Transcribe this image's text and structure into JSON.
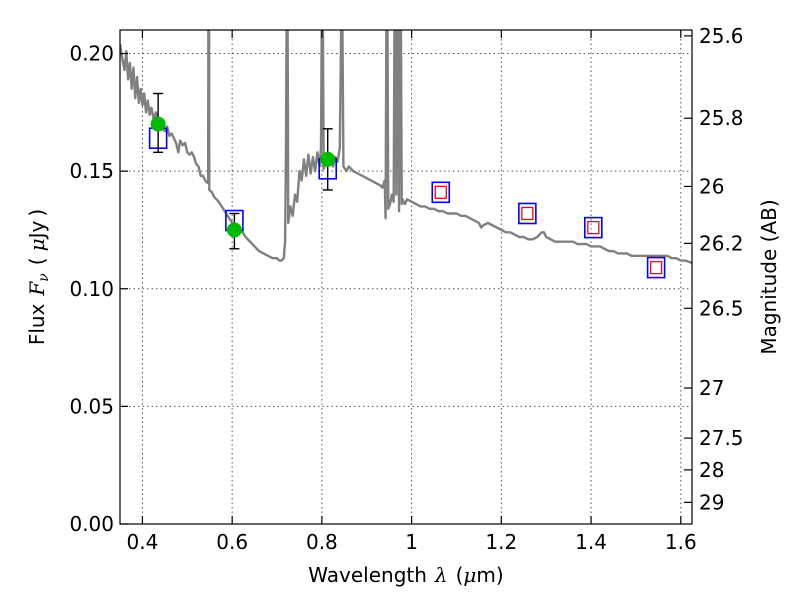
{
  "chart_data": {
    "type": "scatter",
    "title": "",
    "xlabel_parts": [
      "Wavelength",
      "λ",
      "(",
      "μ",
      "m)"
    ],
    "ylabel_parts": [
      "Flux",
      "F",
      "ν",
      "(",
      "μ",
      "Jy",
      ")"
    ],
    "y2label": "Magnitude (AB)",
    "xlim": [
      0.35,
      1.625
    ],
    "ylim": [
      0.0,
      0.21
    ],
    "grid": true,
    "x_ticks": [
      {
        "value": 0.4,
        "label": "0.4"
      },
      {
        "value": 0.6,
        "label": "0.6"
      },
      {
        "value": 0.8,
        "label": "0.8"
      },
      {
        "value": 1.0,
        "label": "1"
      },
      {
        "value": 1.2,
        "label": "1.2"
      },
      {
        "value": 1.4,
        "label": "1.4"
      },
      {
        "value": 1.6,
        "label": "1.6"
      }
    ],
    "y_ticks": [
      {
        "value": 0.0,
        "label": "0.00"
      },
      {
        "value": 0.05,
        "label": "0.05"
      },
      {
        "value": 0.1,
        "label": "0.10"
      },
      {
        "value": 0.15,
        "label": "0.15"
      },
      {
        "value": 0.2,
        "label": "0.20"
      }
    ],
    "y2_ticks": [
      {
        "flux": 0.2075,
        "label": "25.6"
      },
      {
        "flux": 0.1725,
        "label": "25.8"
      },
      {
        "flux": 0.1435,
        "label": "26"
      },
      {
        "flux": 0.1193,
        "label": "26.2"
      },
      {
        "flux": 0.0917,
        "label": "26.5"
      },
      {
        "flux": 0.0578,
        "label": "27"
      },
      {
        "flux": 0.0365,
        "label": "27.5"
      },
      {
        "flux": 0.023,
        "label": "28"
      },
      {
        "flux": 0.0092,
        "label": "29"
      }
    ],
    "series": [
      {
        "kind": "line",
        "color": "#808080",
        "points": [
          [
            0.35,
            0.204
          ],
          [
            0.355,
            0.198
          ],
          [
            0.36,
            0.193
          ],
          [
            0.364,
            0.201
          ],
          [
            0.368,
            0.189
          ],
          [
            0.372,
            0.196
          ],
          [
            0.376,
            0.185
          ],
          [
            0.38,
            0.194
          ],
          [
            0.384,
            0.181
          ],
          [
            0.388,
            0.19
          ],
          [
            0.392,
            0.179
          ],
          [
            0.396,
            0.185
          ],
          [
            0.4,
            0.178
          ],
          [
            0.404,
            0.183
          ],
          [
            0.408,
            0.175
          ],
          [
            0.412,
            0.18
          ],
          [
            0.416,
            0.174
          ],
          [
            0.42,
            0.177
          ],
          [
            0.425,
            0.172
          ],
          [
            0.43,
            0.175
          ],
          [
            0.435,
            0.17
          ],
          [
            0.44,
            0.171
          ],
          [
            0.445,
            0.168
          ],
          [
            0.45,
            0.167
          ],
          [
            0.455,
            0.169
          ],
          [
            0.46,
            0.165
          ],
          [
            0.465,
            0.166
          ],
          [
            0.47,
            0.164
          ],
          [
            0.475,
            0.162
          ],
          [
            0.48,
            0.158
          ],
          [
            0.484,
            0.163
          ],
          [
            0.49,
            0.161
          ],
          [
            0.495,
            0.162
          ],
          [
            0.5,
            0.158
          ],
          [
            0.505,
            0.157
          ],
          [
            0.51,
            0.158
          ],
          [
            0.515,
            0.156
          ],
          [
            0.52,
            0.153
          ],
          [
            0.525,
            0.152
          ],
          [
            0.53,
            0.148
          ],
          [
            0.535,
            0.148
          ],
          [
            0.54,
            0.146
          ],
          [
            0.545,
            0.145
          ],
          [
            0.5465,
            0.145
          ],
          [
            0.547,
            0.22
          ],
          [
            0.5485,
            0.22
          ],
          [
            0.549,
            0.142
          ],
          [
            0.555,
            0.141
          ],
          [
            0.56,
            0.139
          ],
          [
            0.57,
            0.137
          ],
          [
            0.58,
            0.134
          ],
          [
            0.59,
            0.131
          ],
          [
            0.6,
            0.128
          ],
          [
            0.61,
            0.126
          ],
          [
            0.62,
            0.125
          ],
          [
            0.63,
            0.122
          ],
          [
            0.64,
            0.12
          ],
          [
            0.65,
            0.118
          ],
          [
            0.66,
            0.116
          ],
          [
            0.67,
            0.115
          ],
          [
            0.68,
            0.114
          ],
          [
            0.69,
            0.113
          ],
          [
            0.7,
            0.113
          ],
          [
            0.705,
            0.112
          ],
          [
            0.71,
            0.112
          ],
          [
            0.715,
            0.113
          ],
          [
            0.718,
            0.12
          ],
          [
            0.72,
            0.16
          ],
          [
            0.7215,
            0.22
          ],
          [
            0.7235,
            0.22
          ],
          [
            0.725,
            0.128
          ],
          [
            0.73,
            0.135
          ],
          [
            0.735,
            0.131
          ],
          [
            0.74,
            0.14
          ],
          [
            0.745,
            0.137
          ],
          [
            0.75,
            0.15
          ],
          [
            0.755,
            0.146
          ],
          [
            0.76,
            0.155
          ],
          [
            0.765,
            0.148
          ],
          [
            0.77,
            0.157
          ],
          [
            0.775,
            0.149
          ],
          [
            0.78,
            0.156
          ],
          [
            0.785,
            0.15
          ],
          [
            0.79,
            0.158
          ],
          [
            0.795,
            0.152
          ],
          [
            0.798,
            0.16
          ],
          [
            0.8,
            0.22
          ],
          [
            0.802,
            0.22
          ],
          [
            0.804,
            0.151
          ],
          [
            0.81,
            0.154
          ],
          [
            0.815,
            0.153
          ],
          [
            0.82,
            0.157
          ],
          [
            0.825,
            0.152
          ],
          [
            0.83,
            0.156
          ],
          [
            0.835,
            0.154
          ],
          [
            0.84,
            0.16
          ],
          [
            0.8435,
            0.22
          ],
          [
            0.8455,
            0.22
          ],
          [
            0.848,
            0.152
          ],
          [
            0.855,
            0.15
          ],
          [
            0.86,
            0.152
          ],
          [
            0.87,
            0.15
          ],
          [
            0.88,
            0.149
          ],
          [
            0.89,
            0.148
          ],
          [
            0.9,
            0.147
          ],
          [
            0.91,
            0.146
          ],
          [
            0.92,
            0.145
          ],
          [
            0.93,
            0.144
          ],
          [
            0.935,
            0.143
          ],
          [
            0.94,
            0.146
          ],
          [
            0.942,
            0.13
          ],
          [
            0.944,
            0.22
          ],
          [
            0.946,
            0.22
          ],
          [
            0.948,
            0.134
          ],
          [
            0.952,
            0.136
          ],
          [
            0.956,
            0.14
          ],
          [
            0.96,
            0.137
          ],
          [
            0.962,
            0.22
          ],
          [
            0.964,
            0.22
          ],
          [
            0.966,
            0.14
          ],
          [
            0.968,
            0.22
          ],
          [
            0.97,
            0.22
          ],
          [
            0.972,
            0.133
          ],
          [
            0.974,
            0.22
          ],
          [
            0.976,
            0.22
          ],
          [
            0.978,
            0.136
          ],
          [
            0.98,
            0.138
          ],
          [
            0.985,
            0.136
          ],
          [
            0.99,
            0.138
          ],
          [
            1.0,
            0.137
          ],
          [
            1.01,
            0.136
          ],
          [
            1.02,
            0.135
          ],
          [
            1.03,
            0.135
          ],
          [
            1.04,
            0.134
          ],
          [
            1.05,
            0.134
          ],
          [
            1.06,
            0.133
          ],
          [
            1.07,
            0.133
          ],
          [
            1.08,
            0.132
          ],
          [
            1.09,
            0.132
          ],
          [
            1.1,
            0.132
          ],
          [
            1.11,
            0.131
          ],
          [
            1.12,
            0.131
          ],
          [
            1.13,
            0.13
          ],
          [
            1.14,
            0.129
          ],
          [
            1.15,
            0.128
          ],
          [
            1.155,
            0.126
          ],
          [
            1.16,
            0.127
          ],
          [
            1.17,
            0.128
          ],
          [
            1.18,
            0.127
          ],
          [
            1.19,
            0.126
          ],
          [
            1.2,
            0.125
          ],
          [
            1.21,
            0.124
          ],
          [
            1.22,
            0.124
          ],
          [
            1.23,
            0.123
          ],
          [
            1.24,
            0.122
          ],
          [
            1.25,
            0.122
          ],
          [
            1.26,
            0.121
          ],
          [
            1.27,
            0.121
          ],
          [
            1.28,
            0.122
          ],
          [
            1.29,
            0.124
          ],
          [
            1.295,
            0.124
          ],
          [
            1.3,
            0.122
          ],
          [
            1.31,
            0.121
          ],
          [
            1.32,
            0.12
          ],
          [
            1.33,
            0.12
          ],
          [
            1.34,
            0.12
          ],
          [
            1.35,
            0.12
          ],
          [
            1.36,
            0.12
          ],
          [
            1.37,
            0.119
          ],
          [
            1.38,
            0.119
          ],
          [
            1.39,
            0.119
          ],
          [
            1.4,
            0.118
          ],
          [
            1.41,
            0.118
          ],
          [
            1.42,
            0.118
          ],
          [
            1.43,
            0.117
          ],
          [
            1.44,
            0.116
          ],
          [
            1.45,
            0.116
          ],
          [
            1.46,
            0.115
          ],
          [
            1.47,
            0.115
          ],
          [
            1.48,
            0.115
          ],
          [
            1.49,
            0.114
          ],
          [
            1.5,
            0.114
          ],
          [
            1.51,
            0.114
          ],
          [
            1.52,
            0.114
          ],
          [
            1.53,
            0.114
          ],
          [
            1.54,
            0.114
          ],
          [
            1.55,
            0.114
          ],
          [
            1.56,
            0.114
          ],
          [
            1.57,
            0.114
          ],
          [
            1.58,
            0.113
          ],
          [
            1.59,
            0.113
          ],
          [
            1.6,
            0.112
          ],
          [
            1.61,
            0.112
          ],
          [
            1.625,
            0.111
          ]
        ]
      },
      {
        "kind": "model-boxes",
        "stroke": "#0000ff",
        "points": [
          [
            0.435,
            0.164
          ],
          [
            0.605,
            0.129
          ],
          [
            0.813,
            0.151
          ],
          [
            1.065,
            0.141
          ],
          [
            1.258,
            0.132
          ],
          [
            1.405,
            0.126
          ],
          [
            1.545,
            0.109
          ]
        ]
      },
      {
        "kind": "limit-squares",
        "stroke": "#ff0000",
        "points": [
          [
            1.065,
            0.141
          ],
          [
            1.258,
            0.132
          ],
          [
            1.405,
            0.126
          ],
          [
            1.545,
            0.109
          ]
        ]
      },
      {
        "kind": "observed",
        "fill": "#00bb00",
        "points": [
          {
            "x": 0.435,
            "y": 0.17,
            "ylow": 0.158,
            "yhigh": 0.183
          },
          {
            "x": 0.605,
            "y": 0.125,
            "ylow": 0.117,
            "yhigh": 0.132
          },
          {
            "x": 0.813,
            "y": 0.155,
            "ylow": 0.142,
            "yhigh": 0.168
          }
        ]
      }
    ]
  }
}
